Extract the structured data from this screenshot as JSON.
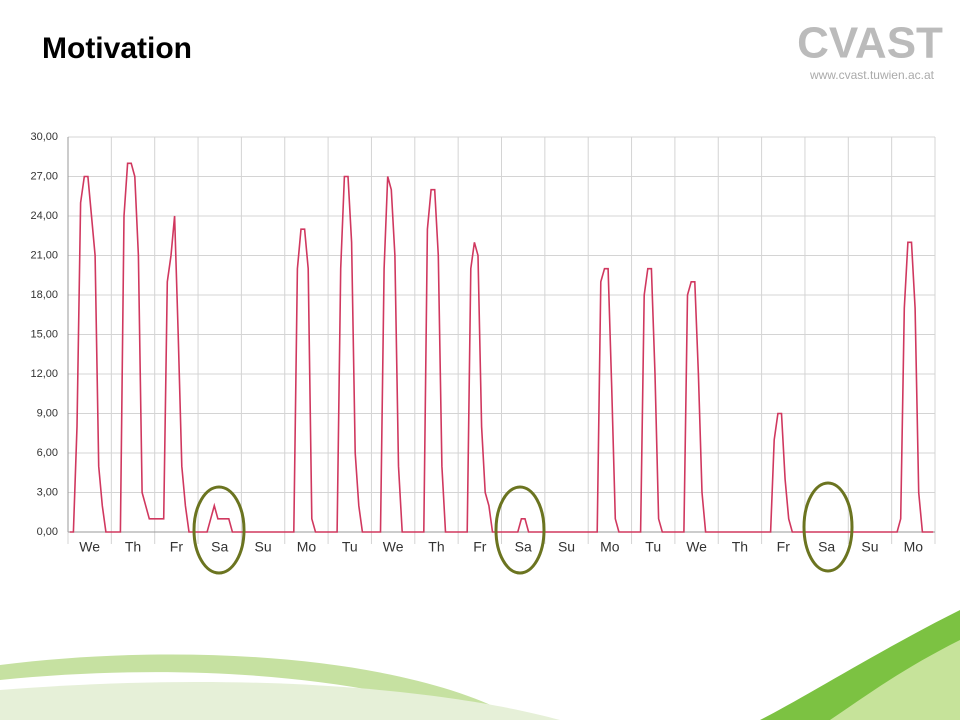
{
  "header": {
    "title": "Motivation",
    "logo": "CVAST",
    "url": "www.cvast.tuwien.ac.at"
  },
  "chart_data": {
    "type": "line",
    "categories": [
      "We",
      "Th",
      "Fr",
      "Sa",
      "Su",
      "Mo",
      "Tu",
      "We",
      "Th",
      "Fr",
      "Sa",
      "Su",
      "Mo",
      "Tu",
      "We",
      "Th",
      "Fr",
      "Sa",
      "Su",
      "Mo"
    ],
    "series": [
      {
        "color": "#d0385f",
        "values": [
          [
            0,
            0,
            8,
            25,
            27,
            27,
            24,
            21,
            5,
            2,
            0,
            0
          ],
          [
            0,
            0,
            0,
            24,
            28,
            28,
            27,
            21,
            3,
            2,
            1,
            1
          ],
          [
            1,
            1,
            1,
            19,
            21,
            24,
            15,
            5,
            2,
            0,
            0,
            0
          ],
          [
            0,
            0,
            0,
            1,
            2,
            1,
            1,
            1,
            1,
            0,
            0,
            0
          ],
          [
            0,
            0,
            0,
            0,
            0,
            0,
            0,
            0,
            0,
            0,
            0,
            0
          ],
          [
            0,
            0,
            0,
            20,
            23,
            23,
            20,
            1,
            0,
            0,
            0,
            0
          ],
          [
            0,
            0,
            0,
            20,
            27,
            27,
            22,
            6,
            2,
            0,
            0,
            0
          ],
          [
            0,
            0,
            0,
            20,
            27,
            26,
            21,
            5,
            0,
            0,
            0,
            0
          ],
          [
            0,
            0,
            0,
            23,
            26,
            26,
            21,
            5,
            0,
            0,
            0,
            0
          ],
          [
            0,
            0,
            0,
            20,
            22,
            21,
            8,
            3,
            2,
            0,
            0,
            0
          ],
          [
            0,
            0,
            0,
            0,
            0,
            1,
            1,
            0,
            0,
            0,
            0,
            0
          ],
          [
            0,
            0,
            0,
            0,
            0,
            0,
            0,
            0,
            0,
            0,
            0,
            0
          ],
          [
            0,
            0,
            0,
            19,
            20,
            20,
            11,
            1,
            0,
            0,
            0,
            0
          ],
          [
            0,
            0,
            0,
            18,
            20,
            20,
            12,
            1,
            0,
            0,
            0,
            0
          ],
          [
            0,
            0,
            0,
            18,
            19,
            19,
            12,
            3,
            0,
            0,
            0,
            0
          ],
          [
            0,
            0,
            0,
            0,
            0,
            0,
            0,
            0,
            0,
            0,
            0,
            0
          ],
          [
            0,
            0,
            0,
            7,
            9,
            9,
            4,
            1,
            0,
            0,
            0,
            0
          ],
          [
            0,
            0,
            0,
            0,
            0,
            0,
            0,
            0,
            0,
            0,
            0,
            0
          ],
          [
            0,
            0,
            0,
            0,
            0,
            0,
            0,
            0,
            0,
            0,
            0,
            0
          ],
          [
            0,
            0,
            1,
            17,
            22,
            22,
            17,
            3,
            0,
            0,
            0,
            0
          ]
        ]
      }
    ],
    "ylim": [
      0,
      30
    ],
    "yticks": [
      {
        "value": 0,
        "label": "0,00"
      },
      {
        "value": 3,
        "label": "3,00"
      },
      {
        "value": 6,
        "label": "6,00"
      },
      {
        "value": 9,
        "label": "9,00"
      },
      {
        "value": 12,
        "label": "12,00"
      },
      {
        "value": 15,
        "label": "15,00"
      },
      {
        "value": 18,
        "label": "18,00"
      },
      {
        "value": 21,
        "label": "21,00"
      },
      {
        "value": 24,
        "label": "24,00"
      },
      {
        "value": 27,
        "label": "27,00"
      },
      {
        "value": 30,
        "label": "30,00"
      }
    ],
    "grid": true
  }
}
